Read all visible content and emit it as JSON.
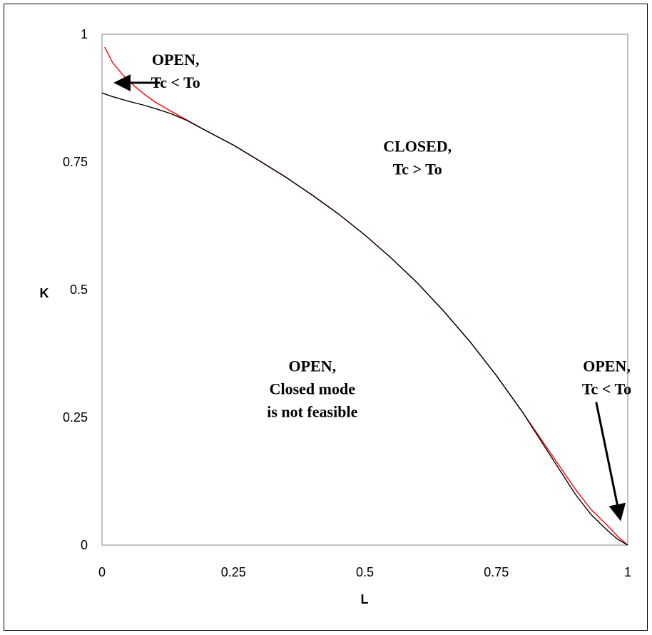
{
  "chart_data": {
    "type": "line",
    "title": "",
    "xlabel": "L",
    "ylabel": "K",
    "xlim": [
      0,
      1
    ],
    "ylim": [
      0,
      1
    ],
    "xticks": [
      "0",
      "0.25",
      "0.5",
      "0.75",
      "1"
    ],
    "yticks": [
      "0",
      "0.25",
      "0.5",
      "0.75",
      "1"
    ],
    "grid": false,
    "legend": "none",
    "series": [
      {
        "color": "#ff0000",
        "x": [
          0.005,
          0.02,
          0.04,
          0.06,
          0.08,
          0.1,
          0.13,
          0.16,
          0.2,
          0.25,
          0.3,
          0.35,
          0.4,
          0.45,
          0.5,
          0.55,
          0.6,
          0.65,
          0.7,
          0.75,
          0.8,
          0.85,
          0.9,
          0.93,
          0.96,
          0.98,
          1.0
        ],
        "y": [
          0.975,
          0.945,
          0.92,
          0.9,
          0.883,
          0.868,
          0.85,
          0.833,
          0.81,
          0.783,
          0.752,
          0.72,
          0.685,
          0.648,
          0.607,
          0.562,
          0.513,
          0.458,
          0.398,
          0.332,
          0.26,
          0.185,
          0.11,
          0.07,
          0.04,
          0.018,
          0.0
        ]
      },
      {
        "color": "#000000",
        "x": [
          0.0,
          0.02,
          0.05,
          0.08,
          0.1,
          0.13,
          0.16,
          0.2,
          0.25,
          0.3,
          0.35,
          0.4,
          0.45,
          0.5,
          0.55,
          0.6,
          0.65,
          0.7,
          0.75,
          0.8,
          0.85,
          0.9,
          0.93,
          0.96,
          0.98,
          1.0
        ],
        "y": [
          0.885,
          0.878,
          0.869,
          0.861,
          0.855,
          0.845,
          0.832,
          0.81,
          0.783,
          0.752,
          0.72,
          0.685,
          0.648,
          0.607,
          0.562,
          0.513,
          0.458,
          0.398,
          0.332,
          0.26,
          0.18,
          0.1,
          0.06,
          0.03,
          0.012,
          0.0
        ]
      }
    ],
    "annotations": [
      {
        "lines": [
          "OPEN,",
          "Tc < To"
        ],
        "x": 0.14,
        "y": 0.94
      },
      {
        "lines": [
          "CLOSED,",
          "Tc > To"
        ],
        "x": 0.6,
        "y": 0.77
      },
      {
        "lines": [
          "OPEN,",
          "Closed mode",
          "is not feasible"
        ],
        "x": 0.4,
        "y": 0.34
      },
      {
        "lines": [
          "OPEN,",
          "Tc < To"
        ],
        "x": 0.96,
        "y": 0.34
      }
    ],
    "arrows": [
      {
        "from": [
          0.11,
          0.905
        ],
        "to": [
          0.03,
          0.905
        ]
      },
      {
        "from": [
          0.94,
          0.28
        ],
        "to": [
          0.985,
          0.055
        ]
      }
    ]
  }
}
